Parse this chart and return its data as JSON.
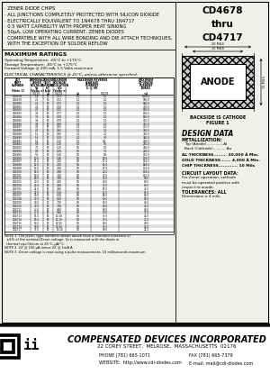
{
  "title_part": "CD4678\nthru\nCD4717",
  "features": [
    "· ZENER DIODE CHIPS",
    "· ALL JUNCTIONS COMPLETELY PROTECTED WITH SILICON DIOXIDE",
    "· ELECTRICALLY EQUIVALENT TO 1N4678 THRU 1N4717",
    "· 0.5 WATT CAPABILITY WITH PROPER HEAT SINKING",
    "· 50μA, LOW OPERATING CURRENT, ZENER DIODES",
    "· COMPATIBLE WITH ALL WIRE BONDING AND DIE ATTACH TECHNIQUES,",
    "  WITH THE EXCEPTION OF SOLDER REFLOW"
  ],
  "max_ratings_title": "MAXIMUM RATINGS",
  "max_ratings": [
    "Operating Temperature: -65°C to +175°C",
    "Storage Temperature: -65°C to +175°C",
    "Forward Voltage @ 200 mA, 1.5 Volts maximum"
  ],
  "elec_char_title": "ELECTRICAL CHARACTERISTICS @ 25°C, unless otherwise specified.",
  "col_headers_line1": [
    "CDI",
    "NOMINAL",
    "ZENER",
    "MAXIMUM",
    "MAXIMUM REVERSE",
    "MAXIMUM"
  ],
  "col_headers_line2": [
    "PART",
    "ZENER",
    "TEST",
    "VOLTAGE",
    "LEAKAGE",
    "ZZ-GRADE"
  ],
  "col_headers_line3": [
    "NUMBER",
    "VOLTAGE",
    "CURRENT",
    "REGULATION",
    "CURRENT",
    "CURRENT"
  ],
  "col_headers_line4": [
    "",
    "Vz",
    "IzT",
    "+Vz",
    "Ir @ VR",
    "IZMAX"
  ],
  "col_headers_line5": [
    "(Note 1)",
    "(Volts ±)",
    "(μA)",
    "(Volts ±)",
    "",
    ""
  ],
  "col_subheaders": [
    "VOLTS",
    "μA",
    "VOLTS",
    "μA",
    "VOLTS",
    "mA"
  ],
  "table_data": [
    [
      "CD4678",
      "1.8",
      "50",
      "0.71",
      "1.0",
      "1.0",
      "1020.0"
    ],
    [
      "CD4679",
      "2.0",
      "50",
      "0.72",
      "1.0",
      "1.0",
      "900.0"
    ],
    [
      "CD4680",
      "2.2",
      "50",
      "0.73",
      "1.0",
      "1.0",
      "820.0"
    ],
    [
      "CD4681",
      "2.4",
      "50",
      "0.74",
      "1.0",
      "1.0",
      "750.0"
    ],
    [
      "CD4682",
      "2.7",
      "50",
      "0.75",
      "1.0",
      "1.0",
      "660.0"
    ],
    [
      "CD4683",
      "3.0",
      "50",
      "0.77",
      "1.0",
      "1.0",
      "600.0"
    ],
    [
      "CD4684",
      "3.3",
      "50",
      "0.78",
      "1.0",
      "1.0",
      "540.0"
    ],
    [
      "CD4685",
      "3.6",
      "50",
      "0.79",
      "1.0",
      "1.0",
      "495.0"
    ],
    [
      "CD4686",
      "3.9",
      "50",
      "0.80",
      "1.0",
      "1.0",
      "455.0"
    ],
    [
      "CD4687",
      "4.3",
      "50",
      "0.81",
      "1.0",
      "1.0",
      "415.0"
    ],
    [
      "CD4688",
      "4.7",
      "50",
      "0.82",
      "1.0",
      "2.0",
      "380.0"
    ],
    [
      "CD4689",
      "5.1",
      "50",
      "0.90",
      "1.0",
      "2.0",
      "350.0"
    ],
    [
      "CD4690",
      "5.6",
      "50",
      "1.00",
      "1.0",
      "3.0",
      "320.0"
    ],
    [
      "CD4691",
      "6.2",
      "50",
      "1.10",
      "1.0",
      "4.0",
      "290.0"
    ],
    [
      "CD4692",
      "6.8",
      "50",
      "1.20",
      "1.0",
      "5.0",
      "265.0"
    ],
    [
      "CD4693",
      "7.5",
      "50",
      "1.30",
      "0.5",
      "6.0",
      "240.0"
    ],
    [
      "CD4694",
      "8.2",
      "50",
      "1.40",
      "0.5",
      "7.0",
      "220.0"
    ],
    [
      "CD4695",
      "9.1",
      "50",
      "1.60",
      "0.5",
      "8.0",
      "195.0"
    ],
    [
      "CD4696",
      "10.0",
      "50",
      "1.80",
      "0.5",
      "10.0",
      "178.0"
    ],
    [
      "CD4697",
      "11.0",
      "50",
      "2.00",
      "0.5",
      "11.4",
      "162.0"
    ],
    [
      "CD4698",
      "12.0",
      "50",
      "2.20",
      "0.5",
      "15.0",
      "148.0"
    ],
    [
      "CD4699",
      "13.0",
      "50",
      "2.40",
      "0.5",
      "17.0",
      "136.0"
    ],
    [
      "CD4700",
      "15.0",
      "50",
      "2.80",
      "0.5",
      "22.0",
      "118.0"
    ],
    [
      "CD4701",
      "16.0",
      "50",
      "3.20",
      "0.5",
      "27.0",
      "110.0"
    ],
    [
      "CD4702",
      "18.0",
      "50",
      "3.60",
      "0.5",
      "35.0",
      "98.0"
    ],
    [
      "CD4703",
      "20.0",
      "50",
      "4.00",
      "0.5",
      "40.0",
      "88.0"
    ],
    [
      "CD4704",
      "22.0",
      "50",
      "4.40",
      "0.5",
      "45.0",
      "80.0"
    ],
    [
      "CD4705",
      "24.0",
      "50",
      "4.80",
      "0.5",
      "50.0",
      "74.0"
    ],
    [
      "CD4706",
      "27.0",
      "50",
      "5.20",
      "0.5",
      "55.0",
      "65.0"
    ],
    [
      "CD4707",
      "30.0",
      "50",
      "6.00",
      "0.5",
      "58.0",
      "59.0"
    ],
    [
      "CD4708",
      "33.0",
      "50",
      "6.60",
      "0.5",
      "60.0",
      "53.0"
    ],
    [
      "CD4709",
      "36.0",
      "50",
      "7.20",
      "0.5",
      "63.0",
      "49.0"
    ],
    [
      "CD4710",
      "39.0",
      "50",
      "7.80",
      "0.5",
      "66.0",
      "45.0"
    ],
    [
      "CD4711",
      "43.0",
      "50",
      "8.60",
      "0.5",
      "68.0",
      "40.0"
    ],
    [
      "CD4712",
      "47.0",
      "50",
      "9.40",
      "0.5",
      "70.0",
      "37.0"
    ],
    [
      "CD4713",
      "51.0",
      "50",
      "10.20",
      "0.5",
      "73.0",
      "34.0"
    ],
    [
      "CD4714",
      "56.0",
      "50",
      "11.20",
      "0.5",
      "77.0",
      "31.0"
    ],
    [
      "CD4715",
      "60.0",
      "50",
      "12.00",
      "0.5",
      "80.0",
      "28.0"
    ],
    [
      "CD4716",
      "68.0",
      "50",
      "13.60",
      "0.5",
      "85.0",
      "26.0"
    ],
    [
      "CD4717",
      "75.0",
      "50",
      "15.00",
      "0.5",
      "88.0",
      "24.0"
    ]
  ],
  "notes": [
    [
      "NOTE 1",
      "  The JEDEC type numbers shown above have a standard tolerance of"
    ],
    [
      "",
      "  ±5% of the nominal Zener voltage. Vz is measured with the diode in"
    ],
    [
      "",
      "  thermal equilibrium at 25°C, μA/°C."
    ],
    [
      "NOTE 2",
      "  VZ @ 100 μA minus VZ @ 1mA A."
    ],
    [
      "NOTE 3",
      "  Zener voltage is read using a pulse measurement, 10 milliseconds maximum."
    ]
  ],
  "design_data_title": "DESIGN DATA",
  "metallization_title": "METALLIZATION:",
  "metallization_lines": [
    "Top (Anode)...............Al",
    "Back (Cathode)............Au"
  ],
  "al_thickness": "AL THICKNESS......... 20,000 Å Min.",
  "gold_thickness": "GOLD THICKNESS....... 4,000 Å Min.",
  "chip_thickness": "CHIP THICKNESS............. 10 Mils",
  "circuit_layout_title": "CIRCUIT LAYOUT DATA:",
  "circuit_layout_text": "For Zener operation, cathode\nmust be operated positive with\nrespect to anode.",
  "tolerances_title": "TOLERANCES: ALL",
  "tolerances_text": "Dimensions ± 4 mils.",
  "figure_label1": "BACKSIDE IS CATHODE",
  "figure_label2": "FIGURE 1",
  "company_name": "COMPENSATED DEVICES INCORPORATED",
  "company_address": "22 COREY STREET,  MELROSE,  MASSACHUSETTS  02176",
  "company_phone": "PHONE (781) 665-1071",
  "company_fax": "FAX (781) 665-7379",
  "company_website": "WEBSITE:  http://www.cdi-diodes.com",
  "company_email": "E-mail: mail@cdi-diodes.com",
  "bg_color": "#f0f0eb",
  "footer_bg": "#ffffff"
}
